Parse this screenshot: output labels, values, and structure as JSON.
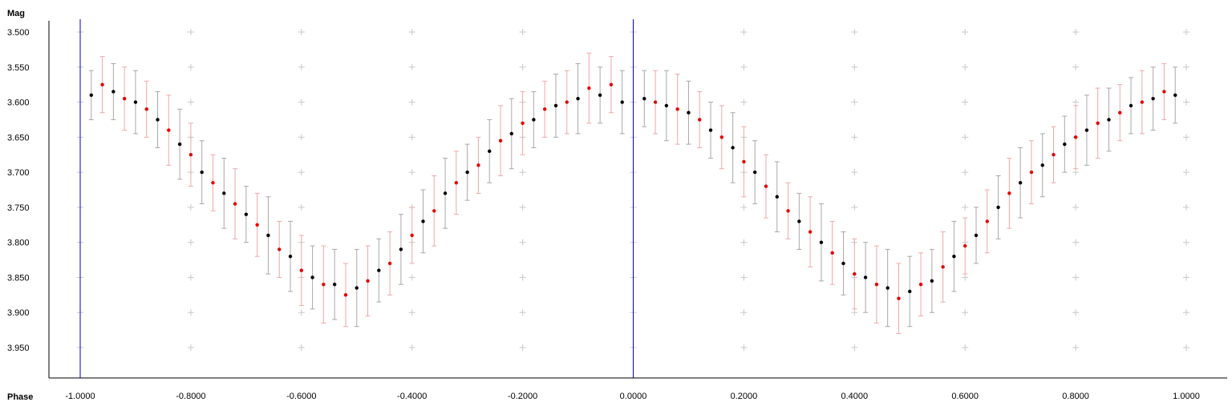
{
  "colors": {
    "axis": "#000000",
    "phase_marker": "#0000c8",
    "grid_cross": "#c8c8c8",
    "series_black_point": "#000000",
    "series_black_error": "#a8a8a8",
    "series_red_point": "#e60000",
    "series_red_error": "#f0a8a8"
  },
  "chart_data": {
    "type": "scatter",
    "xlabel": "Phase",
    "ylabel": "Mag",
    "xlim": [
      -1.0,
      1.0
    ],
    "ylim": [
      3.49,
      3.98
    ],
    "y_inverted": true,
    "grid": "cross markers",
    "x_ticks": [
      -1.0,
      -0.8,
      -0.6,
      -0.4,
      -0.2,
      0.0,
      0.2,
      0.4,
      0.6,
      0.8,
      1.0
    ],
    "x_tick_labels": [
      "-1.0000",
      "-0.8000",
      "-0.6000",
      "-0.4000",
      "-0.2000",
      "0.0000",
      "0.2000",
      "0.4000",
      "0.6000",
      "0.8000",
      "1.0000"
    ],
    "y_ticks": [
      3.5,
      3.55,
      3.6,
      3.65,
      3.7,
      3.75,
      3.8,
      3.85,
      3.9,
      3.95
    ],
    "y_tick_labels": [
      "3.500",
      "3.550",
      "3.600",
      "3.650",
      "3.700",
      "3.750",
      "3.800",
      "3.850",
      "3.900",
      "3.950"
    ],
    "phase_markers": [
      -1.0,
      0.0
    ],
    "series": [
      {
        "color": "black",
        "x": [
          -0.98,
          -0.94,
          -0.9,
          -0.86,
          -0.82,
          -0.78,
          -0.74,
          -0.7,
          -0.66,
          -0.62,
          -0.58,
          -0.54,
          -0.5,
          -0.46,
          -0.42,
          -0.38,
          -0.34,
          -0.3,
          -0.26,
          -0.22,
          -0.18,
          -0.14,
          -0.1,
          -0.06,
          -0.02,
          0.02,
          0.06,
          0.1,
          0.14,
          0.18,
          0.22,
          0.26,
          0.3,
          0.34,
          0.38,
          0.42,
          0.46,
          0.5,
          0.54,
          0.58,
          0.62,
          0.66,
          0.7,
          0.74,
          0.78,
          0.82,
          0.86,
          0.9,
          0.94,
          0.98
        ],
        "y": [
          3.59,
          3.585,
          3.6,
          3.625,
          3.66,
          3.7,
          3.73,
          3.76,
          3.79,
          3.82,
          3.85,
          3.86,
          3.865,
          3.84,
          3.81,
          3.77,
          3.73,
          3.7,
          3.67,
          3.645,
          3.625,
          3.605,
          3.595,
          3.59,
          3.6,
          3.595,
          3.605,
          3.615,
          3.64,
          3.665,
          3.7,
          3.735,
          3.77,
          3.8,
          3.83,
          3.85,
          3.865,
          3.87,
          3.855,
          3.82,
          3.79,
          3.75,
          3.715,
          3.69,
          3.66,
          3.64,
          3.625,
          3.605,
          3.595,
          3.59
        ],
        "err": [
          0.035,
          0.04,
          0.045,
          0.04,
          0.05,
          0.045,
          0.05,
          0.04,
          0.055,
          0.05,
          0.045,
          0.05,
          0.055,
          0.045,
          0.05,
          0.045,
          0.05,
          0.04,
          0.045,
          0.05,
          0.04,
          0.045,
          0.05,
          0.04,
          0.045,
          0.04,
          0.05,
          0.045,
          0.04,
          0.05,
          0.045,
          0.05,
          0.04,
          0.055,
          0.045,
          0.05,
          0.055,
          0.05,
          0.045,
          0.05,
          0.04,
          0.045,
          0.05,
          0.045,
          0.04,
          0.05,
          0.045,
          0.04,
          0.045,
          0.04
        ]
      },
      {
        "color": "red",
        "x": [
          -0.96,
          -0.92,
          -0.88,
          -0.84,
          -0.8,
          -0.76,
          -0.72,
          -0.68,
          -0.64,
          -0.6,
          -0.56,
          -0.52,
          -0.48,
          -0.44,
          -0.4,
          -0.36,
          -0.32,
          -0.28,
          -0.24,
          -0.2,
          -0.16,
          -0.12,
          -0.08,
          -0.04,
          0.04,
          0.08,
          0.12,
          0.16,
          0.2,
          0.24,
          0.28,
          0.32,
          0.36,
          0.4,
          0.44,
          0.48,
          0.52,
          0.56,
          0.6,
          0.64,
          0.68,
          0.72,
          0.76,
          0.8,
          0.84,
          0.88,
          0.92,
          0.96
        ],
        "y": [
          3.575,
          3.595,
          3.61,
          3.64,
          3.675,
          3.715,
          3.745,
          3.775,
          3.81,
          3.84,
          3.86,
          3.875,
          3.855,
          3.83,
          3.79,
          3.755,
          3.715,
          3.69,
          3.655,
          3.63,
          3.61,
          3.6,
          3.58,
          3.575,
          3.6,
          3.61,
          3.625,
          3.65,
          3.685,
          3.72,
          3.755,
          3.785,
          3.815,
          3.845,
          3.86,
          3.88,
          3.86,
          3.835,
          3.805,
          3.77,
          3.73,
          3.7,
          3.675,
          3.65,
          3.63,
          3.615,
          3.6,
          3.585
        ],
        "err": [
          0.04,
          0.045,
          0.04,
          0.05,
          0.045,
          0.04,
          0.05,
          0.045,
          0.04,
          0.05,
          0.055,
          0.045,
          0.05,
          0.045,
          0.04,
          0.05,
          0.045,
          0.04,
          0.05,
          0.045,
          0.04,
          0.045,
          0.05,
          0.04,
          0.045,
          0.05,
          0.04,
          0.045,
          0.05,
          0.045,
          0.04,
          0.05,
          0.045,
          0.05,
          0.055,
          0.05,
          0.045,
          0.05,
          0.04,
          0.045,
          0.05,
          0.045,
          0.04,
          0.045,
          0.05,
          0.04,
          0.045,
          0.04
        ]
      }
    ]
  }
}
